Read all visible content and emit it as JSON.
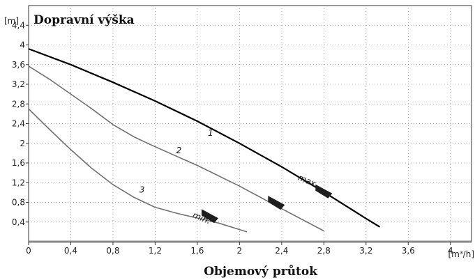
{
  "chart_data": {
    "type": "line",
    "title": "Dopravní výška",
    "ylabel_unit": "[m]",
    "xlabel": "Objemový průtok",
    "xlabel_unit": "[m³/h]",
    "xlim": [
      0,
      4.2
    ],
    "ylim": [
      0,
      4.8
    ],
    "x_ticks": [
      "0",
      "0,4",
      "0,8",
      "1,2",
      "1,6",
      "2",
      "2,4",
      "2,8",
      "3,2",
      "3,6",
      "4"
    ],
    "y_ticks": [
      "0,4",
      "0,8",
      "1,2",
      "1,6",
      "2",
      "2,4",
      "2,8",
      "3,2",
      "3,6",
      "4",
      "4,4"
    ],
    "grid": true,
    "series": [
      {
        "name": "1",
        "color": "#000000",
        "x": [
          0,
          0.4,
          0.8,
          1.2,
          1.6,
          2.0,
          2.4,
          2.8,
          3.2,
          3.33
        ],
        "y": [
          3.92,
          3.6,
          3.24,
          2.86,
          2.45,
          2.0,
          1.52,
          1.01,
          0.47,
          0.3
        ]
      },
      {
        "name": "2",
        "color": "#707070",
        "x": [
          0,
          0.2,
          0.4,
          0.6,
          0.8,
          1.0,
          1.2,
          1.6,
          2.0,
          2.4,
          2.8
        ],
        "y": [
          3.57,
          3.3,
          3.0,
          2.7,
          2.38,
          2.13,
          1.93,
          1.55,
          1.13,
          0.67,
          0.22
        ]
      },
      {
        "name": "3",
        "color": "#707070",
        "x": [
          0,
          0.2,
          0.4,
          0.6,
          0.8,
          1.0,
          1.2,
          1.4,
          1.6,
          1.8,
          2.07
        ],
        "y": [
          2.7,
          2.28,
          1.87,
          1.49,
          1.16,
          0.9,
          0.7,
          0.58,
          0.48,
          0.38,
          0.2
        ]
      }
    ],
    "annotations": [
      {
        "text": "1",
        "x": 1.7,
        "y": 2.15
      },
      {
        "text": "2",
        "x": 1.4,
        "y": 1.8
      },
      {
        "text": "3",
        "x": 1.05,
        "y": 1.0
      },
      {
        "text": "max.",
        "x": 2.55,
        "y": 1.26
      },
      {
        "text": "min.",
        "x": 1.55,
        "y": 0.5
      }
    ],
    "markers": [
      {
        "x": 2.8,
        "y": 1.05
      },
      {
        "x": 2.35,
        "y": 0.82
      },
      {
        "x": 1.72,
        "y": 0.55
      }
    ]
  }
}
